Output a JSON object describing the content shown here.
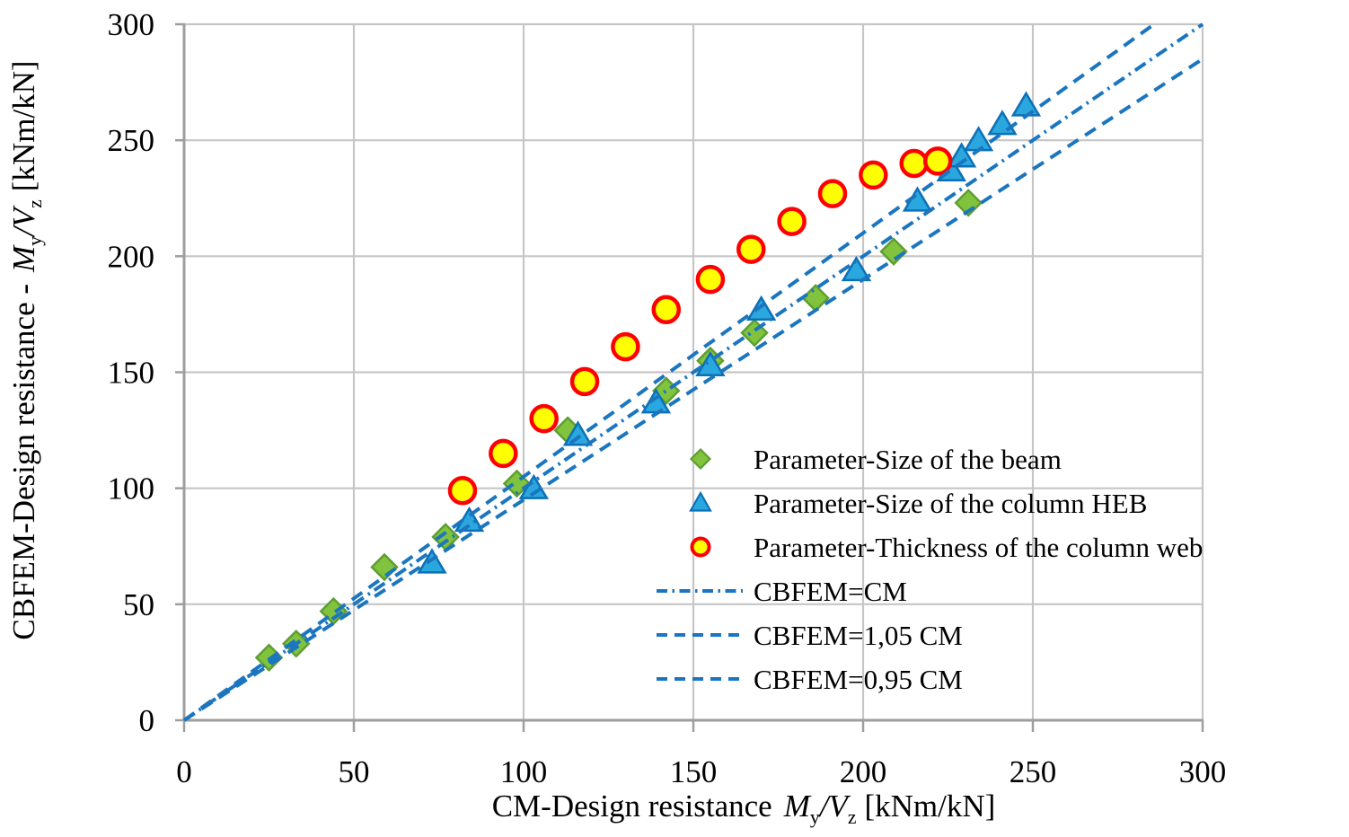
{
  "figure": {
    "background": "#FFFFFF"
  },
  "chart_data": {
    "type": "scatter",
    "title": "",
    "xlabel": "CM-Design resistance My/Vz [kNm/kN]",
    "ylabel": "CBFEM-Design resistance - My/Vz [kNm/kN]",
    "xlabel_parts": {
      "prefix": "CM-Design resistance",
      "m": "M",
      "m_sub": "y",
      "slash": "/",
      "v": "V",
      "v_sub": "z",
      "unit": "[kNm/kN]"
    },
    "ylabel_parts": {
      "prefix": "CBFEM-Design resistance -",
      "m": "M",
      "m_sub": "y",
      "slash": "/",
      "v": "V",
      "v_sub": "z",
      "unit": "[kNm/kN]"
    },
    "xlim": [
      0,
      300
    ],
    "ylim": [
      0,
      300
    ],
    "xticks": [
      0,
      50,
      100,
      150,
      200,
      250,
      300
    ],
    "yticks": [
      0,
      50,
      100,
      150,
      200,
      250,
      300
    ],
    "grid": true,
    "legend_position": "inside-center-right",
    "grid_color": "#C6C6C6",
    "axis_color": "#9E9E9E",
    "line_color": "#1B76BF",
    "series": [
      {
        "name": "Parameter-Size of the beam",
        "marker": "diamond",
        "fill": "#82C33E",
        "stroke": "#5E9E32",
        "points": [
          [
            25,
            27
          ],
          [
            33,
            33
          ],
          [
            44,
            47
          ],
          [
            59,
            66
          ],
          [
            77,
            79
          ],
          [
            98,
            102
          ],
          [
            113,
            125
          ],
          [
            142,
            142
          ],
          [
            155,
            155
          ],
          [
            168,
            167
          ],
          [
            186,
            182
          ],
          [
            209,
            202
          ],
          [
            231,
            223
          ]
        ]
      },
      {
        "name": "Parameter-Size of the column HEB",
        "marker": "triangle",
        "fill": "#2BA7DF",
        "stroke": "#0C70B6",
        "points": [
          [
            73,
            68
          ],
          [
            84,
            86
          ],
          [
            103,
            100
          ],
          [
            116,
            123
          ],
          [
            139,
            137
          ],
          [
            155,
            153
          ],
          [
            170,
            177
          ],
          [
            198,
            194
          ],
          [
            216,
            224
          ],
          [
            226,
            237
          ],
          [
            229,
            243
          ],
          [
            234,
            250
          ],
          [
            241,
            257
          ],
          [
            248,
            265
          ]
        ]
      },
      {
        "name": "Parameter-Thickness of the column web",
        "marker": "circle",
        "fill": "#FFFF00",
        "stroke": "#FF0000",
        "points": [
          [
            82,
            99
          ],
          [
            94,
            115
          ],
          [
            106,
            130
          ],
          [
            118,
            146
          ],
          [
            130,
            161
          ],
          [
            142,
            177
          ],
          [
            155,
            190
          ],
          [
            167,
            203
          ],
          [
            179,
            215
          ],
          [
            191,
            227
          ],
          [
            203,
            235
          ],
          [
            215,
            240
          ],
          [
            222,
            241
          ]
        ]
      }
    ],
    "lines": [
      {
        "name": "CBFEM=CM",
        "slope": 1,
        "style": "dashdot"
      },
      {
        "name": "CBFEM=1,05 CM",
        "slope": 1.05,
        "style": "dashed"
      },
      {
        "name": "CBFEM=0,95 CM",
        "slope": 0.95,
        "style": "dashed"
      }
    ]
  },
  "legend": {
    "items": [
      {
        "swatch": "diamond",
        "label": "Parameter-Size of the beam"
      },
      {
        "swatch": "triangle",
        "label": "Parameter-Size of the column HEB"
      },
      {
        "swatch": "circle",
        "label": "Parameter-Thickness of the column web"
      },
      {
        "swatch": "dashdot-line",
        "label": "CBFEM=CM"
      },
      {
        "swatch": "dashed-line",
        "label": "CBFEM=1,05 CM"
      },
      {
        "swatch": "dashed-line",
        "label": "CBFEM=0,95 CM"
      }
    ]
  }
}
